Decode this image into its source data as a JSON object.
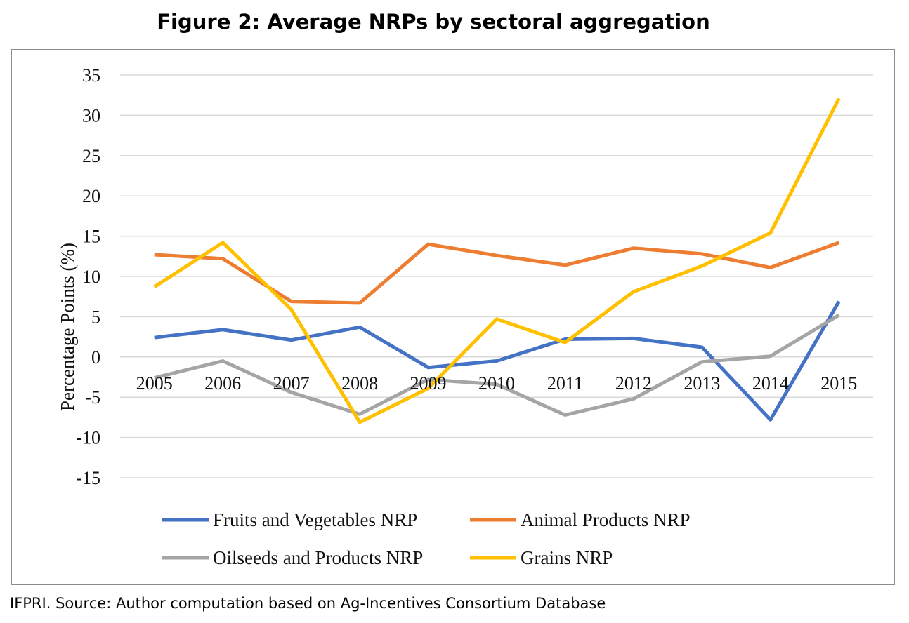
{
  "figure_title": "Figure 2: Average NRPs by sectoral aggregation",
  "source_note": "IFPRI. Source: Author computation based on Ag-Incentives Consortium Database",
  "chart_data": {
    "type": "line",
    "title": "Figure 2: Average NRPs by sectoral aggregation",
    "xlabel": "",
    "ylabel": "Percentage Points (%)",
    "ylim": [
      -15,
      35
    ],
    "yticks": [
      -15,
      -10,
      -5,
      0,
      5,
      10,
      15,
      20,
      25,
      30,
      35
    ],
    "grid": true,
    "legend_position": "bottom",
    "categories": [
      "2005",
      "2006",
      "2007",
      "2008",
      "2009",
      "2010",
      "2011",
      "2012",
      "2013",
      "2014",
      "2015"
    ],
    "series": [
      {
        "name": "Fruits and Vegetables NRP",
        "color": "#4472c4",
        "values": [
          2.4,
          3.4,
          2.1,
          3.7,
          -1.3,
          -0.5,
          2.2,
          2.3,
          1.2,
          -7.8,
          6.9
        ]
      },
      {
        "name": "Animal Products NRP",
        "color": "#ed7d31",
        "values": [
          12.7,
          12.2,
          6.9,
          6.7,
          14.0,
          12.6,
          11.4,
          13.5,
          12.8,
          11.1,
          14.2
        ]
      },
      {
        "name": "Oilseeds and Products NRP",
        "color": "#a5a5a5",
        "values": [
          -2.6,
          -0.5,
          -4.4,
          -7.1,
          -2.8,
          -3.4,
          -7.2,
          -5.2,
          -0.6,
          0.1,
          5.2
        ]
      },
      {
        "name": "Grains NRP",
        "color": "#ffc000",
        "values": [
          8.7,
          14.2,
          5.9,
          -8.1,
          -3.9,
          4.7,
          1.8,
          8.1,
          11.3,
          15.4,
          32.1
        ]
      }
    ]
  }
}
